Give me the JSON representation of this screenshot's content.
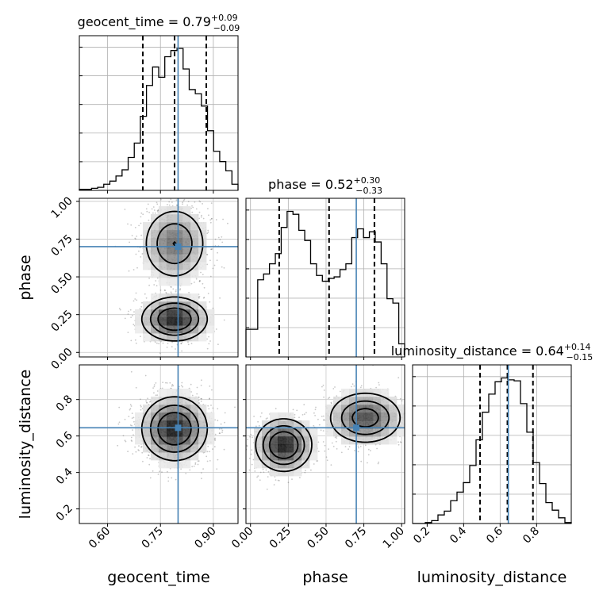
{
  "chart_data": {
    "type": "corner",
    "parameters": [
      {
        "name": "geocent_time",
        "median": "0.79",
        "plus": "+0.09",
        "minus": "−0.09",
        "range": [
          0.52,
          0.97
        ],
        "ticks": [
          "0.60",
          "0.75",
          "0.90"
        ],
        "tick_values": [
          0.6,
          0.75,
          0.9
        ],
        "truth": 0.8,
        "quantiles": [
          0.7,
          0.79,
          0.88
        ]
      },
      {
        "name": "phase",
        "median": "0.52",
        "plus": "+0.30",
        "minus": "−0.33",
        "range": [
          -0.03,
          1.02
        ],
        "ticks": [
          "0.00",
          "0.25",
          "0.50",
          "0.75",
          "1.00"
        ],
        "tick_values": [
          0.0,
          0.25,
          0.5,
          0.75,
          1.0
        ],
        "truth": 0.7,
        "quantiles": [
          0.19,
          0.52,
          0.82
        ]
      },
      {
        "name": "luminosity_distance",
        "median": "0.64",
        "plus": "+0.14",
        "minus": "−0.15",
        "range": [
          0.12,
          0.99
        ],
        "ticks": [
          "0.2",
          "0.4",
          "0.6",
          "0.8"
        ],
        "tick_values": [
          0.2,
          0.4,
          0.6,
          0.8
        ],
        "truth": 0.645,
        "quantiles": [
          0.49,
          0.64,
          0.78
        ]
      }
    ],
    "histograms": [
      {
        "param": "geocent_time",
        "values": [
          1,
          1,
          2,
          3,
          6,
          9,
          14,
          20,
          32,
          46,
          72,
          102,
          120,
          110,
          130,
          136,
          138,
          118,
          98,
          94,
          82,
          58,
          38,
          28,
          19,
          6
        ]
      },
      {
        "param": "phase",
        "values": [
          19,
          19,
          53,
          57,
          64,
          71,
          89,
          100,
          98,
          87,
          80,
          64,
          56,
          52,
          54,
          55,
          60,
          64,
          82,
          88,
          82,
          86,
          79,
          64,
          40,
          37,
          9
        ]
      },
      {
        "param": "luminosity_distance",
        "values": [
          0,
          0,
          1,
          3,
          9,
          13,
          24,
          33,
          43,
          61,
          88,
          117,
          136,
          149,
          153,
          151,
          150,
          126,
          96,
          64,
          42,
          22,
          14,
          6,
          1
        ]
      }
    ],
    "truth_color": "#4682b4",
    "line_color": "#000000"
  }
}
